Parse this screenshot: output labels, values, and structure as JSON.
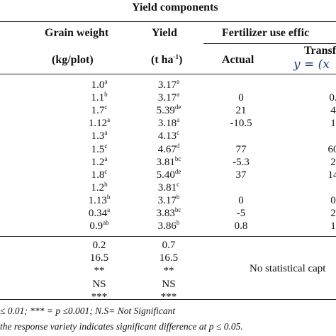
{
  "header": {
    "group_title": "Yield components",
    "col_grain_weight": "Grain weight",
    "col_grain_unit": "(kg/plot)",
    "col_yield": "Yield",
    "col_yield_unit_main": "(t ha",
    "col_yield_unit_sup": "-1",
    "col_yield_unit_close": ")",
    "col_fue": "Fertilizer use effic",
    "sub_actual": "Actual",
    "sub_transformed": "Transf",
    "formula": "y = (x"
  },
  "rows": [
    {
      "gw": "1.0",
      "gw_sup": "a",
      "y": "3.17",
      "y_sup": "a",
      "act": "",
      "tr": ""
    },
    {
      "gw": "1.1",
      "gw_sup": "b",
      "y": "3.17",
      "y_sup": "a",
      "act": "0",
      "tr": "0."
    },
    {
      "gw": "1.7",
      "gw_sup": "c",
      "y": "5.39",
      "y_sup": "de",
      "act": "21",
      "tr": "4"
    },
    {
      "gw": "1.12",
      "gw_sup": "a",
      "y": "3.18",
      "y_sup": "a",
      "act": "-10.5",
      "tr": "1"
    },
    {
      "gw": "1.3",
      "gw_sup": "a",
      "y": "4.13",
      "y_sup": "c",
      "act": "",
      "tr": ""
    },
    {
      "gw": "1.5",
      "gw_sup": "c",
      "y": "4.67",
      "y_sup": "d",
      "act": "77",
      "tr": "60"
    },
    {
      "gw": "1.2",
      "gw_sup": "a",
      "y": "3.81",
      "y_sup": "bc",
      "act": "-5.3",
      "tr": "2"
    },
    {
      "gw": "1.8",
      "gw_sup": "c",
      "y": "5.40",
      "y_sup": "de",
      "act": "37",
      "tr": "14"
    },
    {
      "gw": "1.2",
      "gw_sup": "b",
      "y": "3.81",
      "y_sup": "c",
      "act": "",
      "tr": ""
    },
    {
      "gw": "1.13",
      "gw_sup": "b",
      "y": "3.17",
      "y_sup": "b",
      "act": "0",
      "tr": "0"
    },
    {
      "gw": "0.34",
      "gw_sup": "a",
      "y": "3.83",
      "y_sup": "bc",
      "act": "-5",
      "tr": "2"
    },
    {
      "gw": "0.9",
      "gw_sup": "ab",
      "y": "3.86",
      "y_sup": "b",
      "act": "0.8",
      "tr": "1"
    }
  ],
  "stats": [
    {
      "gw": "0.2",
      "y": "0.7"
    },
    {
      "gw": "16.5",
      "y": "16.5"
    },
    {
      "gw": "**",
      "y": "**"
    },
    {
      "gw": "NS",
      "y": "NS"
    },
    {
      "gw": "***",
      "y": "***"
    }
  ],
  "stats_note": "No statistical capt",
  "footnotes": {
    "line1": "≤ 0.01; *** = p ≤0.001; N.S= Not Significant",
    "line2": "the response variety indicates significant difference at p ≤ 0.05."
  }
}
